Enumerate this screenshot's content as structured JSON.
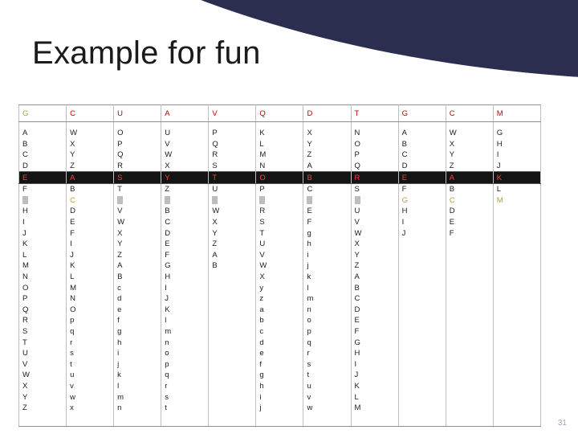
{
  "slide": {
    "title": "Example for fun",
    "page_number": "31",
    "colors": {
      "background": "#2b2e4f",
      "panel": "#ffffff",
      "highlight_text": "#c00000",
      "highlight_row": "#141414"
    }
  },
  "grid": {
    "header": [
      "G",
      "C",
      "U",
      "A",
      "V",
      "Q",
      "D",
      "T",
      "G",
      "C",
      "M"
    ],
    "rows": [
      [
        "A",
        "W",
        "O",
        "U",
        "P",
        "K",
        "X",
        "N",
        "A",
        "W",
        "G"
      ],
      [
        "B",
        "X",
        "P",
        "V",
        "Q",
        "L",
        "Y",
        "O",
        "B",
        "X",
        "H"
      ],
      [
        "C",
        "Y",
        "Q",
        "W",
        "R",
        "M",
        "Z",
        "P",
        "C",
        "Y",
        "I"
      ],
      [
        "D",
        "Z",
        "R",
        "X",
        "S",
        "N",
        "A",
        "Q",
        "D",
        "Z",
        "J"
      ],
      [
        "E",
        "A",
        "S",
        "Y",
        "T",
        "O",
        "B",
        "R",
        "E",
        "A",
        "K"
      ],
      [
        "F",
        "B",
        "T",
        "Z",
        "U",
        "P",
        "C",
        "S",
        "F",
        "B",
        "L"
      ],
      [
        "",
        "C",
        "",
        "",
        "",
        "",
        "",
        "",
        "G",
        "C",
        "M"
      ],
      [
        "H",
        "D",
        "V",
        "B",
        "W",
        "R",
        "E",
        "U",
        "H",
        "D",
        ""
      ],
      [
        "I",
        "E",
        "W",
        "C",
        "X",
        "S",
        "F",
        "V",
        "I",
        "E",
        ""
      ],
      [
        "J",
        "F",
        "X",
        "D",
        "Y",
        "T",
        "g",
        "W",
        "J",
        "F",
        ""
      ],
      [
        "K",
        "I",
        "Y",
        "E",
        "Z",
        "U",
        "h",
        "X",
        "",
        "",
        ""
      ],
      [
        "L",
        "J",
        "Z",
        "F",
        "A",
        "V",
        "i",
        "Y",
        "",
        "",
        ""
      ],
      [
        "M",
        "K",
        "A",
        "G",
        "B",
        "W",
        "j",
        "Z",
        "",
        "",
        ""
      ],
      [
        "N",
        "L",
        "B",
        "H",
        "",
        "X",
        "k",
        "A",
        "",
        "",
        ""
      ],
      [
        "O",
        "M",
        "c",
        "I",
        "",
        "y",
        "l",
        "B",
        "",
        "",
        ""
      ],
      [
        "P",
        "N",
        "d",
        "J",
        "",
        "z",
        "m",
        "C",
        "",
        "",
        ""
      ],
      [
        "Q",
        "O",
        "e",
        "K",
        "",
        "a",
        "n",
        "D",
        "",
        "",
        ""
      ],
      [
        "R",
        "p",
        "f",
        "l",
        "",
        "b",
        "o",
        "E",
        "",
        "",
        ""
      ],
      [
        "S",
        "q",
        "g",
        "m",
        "",
        "c",
        "p",
        "F",
        "",
        "",
        ""
      ],
      [
        "T",
        "r",
        "h",
        "n",
        "",
        "d",
        "q",
        "G",
        "",
        "",
        ""
      ],
      [
        "U",
        "s",
        "i",
        "o",
        "",
        "e",
        "r",
        "H",
        "",
        "",
        ""
      ],
      [
        "V",
        "t",
        "j",
        "p",
        "",
        "f",
        "s",
        "I",
        "",
        "",
        ""
      ],
      [
        "W",
        "u",
        "k",
        "q",
        "",
        "g",
        "t",
        "J",
        "",
        "",
        ""
      ],
      [
        "X",
        "v",
        "l",
        "r",
        "",
        "h",
        "u",
        "K",
        "",
        "",
        ""
      ],
      [
        "Y",
        "w",
        "m",
        "s",
        "",
        "i",
        "v",
        "L",
        "",
        "",
        ""
      ],
      [
        "Z",
        "x",
        "n",
        "t",
        "",
        "j",
        "w",
        "M",
        "",
        "",
        ""
      ]
    ]
  }
}
